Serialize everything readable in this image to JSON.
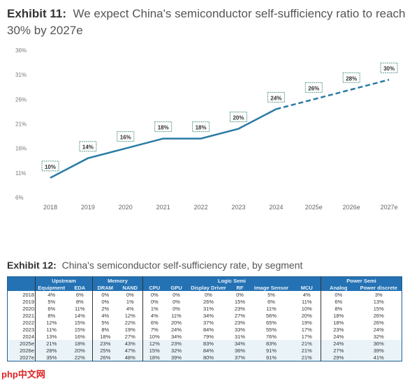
{
  "exhibit11": {
    "label": "Exhibit 11:",
    "title": "We expect China's semiconductor self-sufficiency ratio to reach 30% by 2027e"
  },
  "chart_data": {
    "type": "line",
    "title": "We expect China's semiconductor self-sufficiency ratio to reach 30% by 2027e",
    "categories": [
      "2018",
      "2019",
      "2020",
      "2021",
      "2022",
      "2023",
      "2024",
      "2025e",
      "2026e",
      "2027e"
    ],
    "values": [
      10,
      14,
      16,
      18,
      18,
      20,
      24,
      26,
      28,
      30
    ],
    "data_labels": [
      "10%",
      "14%",
      "16%",
      "18%",
      "18%",
      "20%",
      "24%",
      "26%",
      "28%",
      "30%"
    ],
    "solid_until": "2024",
    "dashed_from": "2024",
    "yticks": [
      6,
      11,
      16,
      21,
      26,
      31,
      36
    ],
    "ytick_labels": [
      "6%",
      "11%",
      "16%",
      "21%",
      "26%",
      "31%",
      "36%"
    ],
    "ylim": [
      6,
      36
    ],
    "grid": false,
    "line_color": "#2a7ba4"
  },
  "exhibit12": {
    "label": "Exhibit 12:",
    "title": "China's semiconductor self-sufficiency rate, by segment",
    "groups": [
      "Upstream",
      "Memory",
      "Logic Semi",
      "Power Semi"
    ],
    "columns": [
      "Equipment",
      "EDA",
      "DRAM",
      "NAND",
      "CPU",
      "GPU",
      "Display Driver",
      "RF",
      "Image Sensor",
      "MCU",
      "Analog",
      "Power discrete"
    ],
    "rows": [
      {
        "year": "2018",
        "v": [
          "4%",
          "6%",
          "0%",
          "0%",
          "0%",
          "0%",
          "0%",
          "0%",
          "5%",
          "4%",
          "0%",
          "3%"
        ]
      },
      {
        "year": "2019",
        "v": [
          "5%",
          "8%",
          "0%",
          "1%",
          "0%",
          "0%",
          "26%",
          "15%",
          "6%",
          "11%",
          "6%",
          "13%"
        ]
      },
      {
        "year": "2020",
        "v": [
          "6%",
          "11%",
          "2%",
          "4%",
          "1%",
          "0%",
          "31%",
          "23%",
          "11%",
          "10%",
          "8%",
          "15%"
        ]
      },
      {
        "year": "2021",
        "v": [
          "8%",
          "14%",
          "4%",
          "12%",
          "4%",
          "11%",
          "34%",
          "27%",
          "56%",
          "20%",
          "18%",
          "26%"
        ]
      },
      {
        "year": "2022",
        "v": [
          "12%",
          "15%",
          "5%",
          "22%",
          "6%",
          "20%",
          "37%",
          "23%",
          "65%",
          "19%",
          "18%",
          "26%"
        ]
      },
      {
        "year": "2023",
        "v": [
          "11%",
          "15%",
          "8%",
          "19%",
          "7%",
          "24%",
          "84%",
          "33%",
          "55%",
          "17%",
          "23%",
          "24%"
        ]
      },
      {
        "year": "2024",
        "v": [
          "13%",
          "16%",
          "18%",
          "27%",
          "10%",
          "34%",
          "79%",
          "31%",
          "76%",
          "17%",
          "24%",
          "32%"
        ]
      },
      {
        "year": "2025e",
        "v": [
          "21%",
          "18%",
          "23%",
          "43%",
          "12%",
          "23%",
          "83%",
          "34%",
          "83%",
          "21%",
          "24%",
          "36%"
        ]
      },
      {
        "year": "2026e",
        "v": [
          "28%",
          "20%",
          "25%",
          "47%",
          "15%",
          "32%",
          "84%",
          "36%",
          "91%",
          "21%",
          "27%",
          "39%"
        ]
      },
      {
        "year": "2027e",
        "v": [
          "35%",
          "22%",
          "26%",
          "48%",
          "18%",
          "39%",
          "80%",
          "37%",
          "91%",
          "21%",
          "29%",
          "41%"
        ]
      }
    ]
  },
  "watermark": "php中文网"
}
